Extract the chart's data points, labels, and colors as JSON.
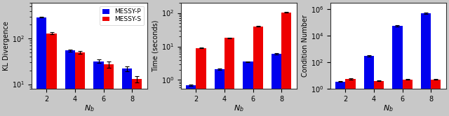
{
  "nb_labels": [
    2,
    4,
    6,
    8
  ],
  "kl_blue_means": [
    290,
    55,
    32,
    22
  ],
  "kl_blue_errs": [
    4,
    3,
    3,
    3
  ],
  "kl_red_means": [
    130,
    50,
    27,
    13
  ],
  "kl_red_errs": [
    7,
    3,
    4,
    2
  ],
  "kl_ylabel": "KL Divergence",
  "kl_ylim": [
    8,
    600
  ],
  "time_blue_means": [
    0.7,
    2.1,
    3.5,
    6.0
  ],
  "time_blue_errs": [
    0.04,
    0.1,
    0.1,
    0.2
  ],
  "time_red_means": [
    9.0,
    18,
    40,
    105
  ],
  "time_red_errs": [
    0.3,
    0.5,
    1.0,
    2.0
  ],
  "time_ylabel": "Time (seconds)",
  "time_ylim": [
    0.55,
    200
  ],
  "cond_blue_means": [
    3.5,
    300,
    55000,
    500000
  ],
  "cond_blue_errs": [
    0.2,
    30,
    8000,
    60000
  ],
  "cond_red_means": [
    5.5,
    4.0,
    5.0,
    5.0
  ],
  "cond_red_errs": [
    0.4,
    0.2,
    0.3,
    0.3
  ],
  "cond_ylabel": "Condition Number",
  "cond_ylim": [
    1,
    3000000
  ],
  "xlabel": "$N_b$",
  "blue_color": "#0000ee",
  "red_color": "#ee0000",
  "blue_label": "MESSY-P",
  "red_label": "MESSY-S",
  "bar_width": 0.35,
  "plot_bg_color": "#ffffff",
  "fig_bg_color": "#c8c8c8",
  "fontsize": 7,
  "legend_fontsize": 6.5
}
